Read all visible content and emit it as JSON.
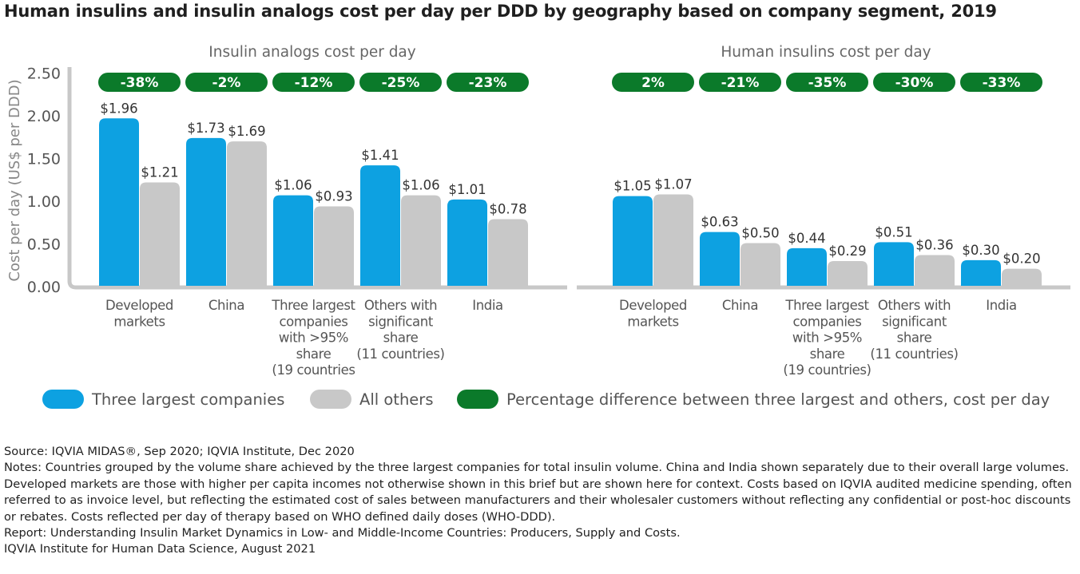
{
  "title": "Human insulins and insulin analogs cost per day per DDD by geography based on company segment, 2019",
  "colors": {
    "three_largest": "#0da1e1",
    "others": "#c8c8c8",
    "pct_pill": "#0b7a2a",
    "axis": "#c8c8c8"
  },
  "chart_data": [
    {
      "type": "bar",
      "title": "Insulin analogs cost per day",
      "ylabel": "Cost per day (US$ per DDD)",
      "ylim": [
        0,
        2.5
      ],
      "yticks": [
        "0.00",
        "0.50",
        "1.00",
        "1.50",
        "2.00",
        "2.50"
      ],
      "categories": [
        [
          "Developed",
          "markets"
        ],
        [
          "China"
        ],
        [
          "Three largest",
          "companies",
          "with >95%",
          "share",
          "(19 countries"
        ],
        [
          "Others with",
          "significant",
          "share",
          "(11 countries)"
        ],
        [
          "India"
        ]
      ],
      "series": [
        {
          "name": "Three largest companies",
          "values": [
            1.96,
            1.73,
            1.06,
            1.41,
            1.01
          ],
          "labels": [
            "$1.96",
            "$1.73",
            "$1.06",
            "$1.41",
            "$1.01"
          ]
        },
        {
          "name": "All others",
          "values": [
            1.21,
            1.69,
            0.93,
            1.06,
            0.78
          ],
          "labels": [
            "$1.21",
            "$1.69",
            "$0.93",
            "$1.06",
            "$0.78"
          ]
        }
      ],
      "pct_diff": [
        "-38%",
        "-2%",
        "-12%",
        "-25%",
        "-23%"
      ]
    },
    {
      "type": "bar",
      "title": "Human insulins cost per day",
      "ylim": [
        0,
        2.5
      ],
      "categories": [
        [
          "Developed",
          "markets"
        ],
        [
          "China"
        ],
        [
          "Three largest",
          "companies",
          "with >95%",
          "share",
          "(19 countries)"
        ],
        [
          "Others with",
          "significant",
          "share",
          "(11 countries)"
        ],
        [
          "India"
        ]
      ],
      "series": [
        {
          "name": "Three largest companies",
          "values": [
            1.05,
            0.63,
            0.44,
            0.51,
            0.3
          ],
          "labels": [
            "$1.05",
            "$0.63",
            "$0.44",
            "$0.51",
            "$0.30"
          ]
        },
        {
          "name": "All others",
          "values": [
            1.07,
            0.5,
            0.29,
            0.36,
            0.2
          ],
          "labels": [
            "$1.07",
            "$0.50",
            "$0.29",
            "$0.36",
            "$0.20"
          ]
        }
      ],
      "pct_diff": [
        "2%",
        "-21%",
        "-35%",
        "-30%",
        "-33%"
      ]
    }
  ],
  "legend": [
    {
      "label": "Three largest companies",
      "color": "#0da1e1"
    },
    {
      "label": "All others",
      "color": "#c8c8c8"
    },
    {
      "label": "Percentage difference between three largest and others, cost per day",
      "color": "#0b7a2a"
    }
  ],
  "footer": {
    "source": "Source: IQVIA MIDAS®, Sep 2020; IQVIA Institute, Dec 2020",
    "notes": "Notes: Countries grouped by the volume share achieved by the three largest companies for total insulin volume. China and India shown separately due to their overall large volumes. Developed markets are those with higher per capita incomes not otherwise shown in this brief but are shown here for context. Costs based on IQVIA audited medicine spending, often referred to as invoice level, but reflecting the estimated cost of sales between manufacturers and their wholesaler customers without reflecting any confidential or post-hoc discounts or rebates. Costs reflected per day of therapy based on WHO defined daily doses (WHO-DDD).",
    "report": "Report: Understanding Insulin Market Dynamics in Low- and Middle-Income Countries: Producers, Supply and Costs.",
    "institute": "IQVIA Institute for Human Data Science, August 2021"
  }
}
